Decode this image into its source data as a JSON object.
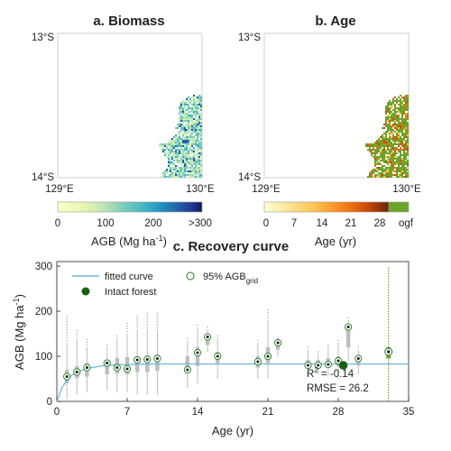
{
  "maps": [
    {
      "title": "a. Biomass",
      "lat_top": "13°S",
      "lat_bottom": "14°S",
      "lon_left": "129°E",
      "lon_right": "130°E",
      "colorbar_ticks": [
        "0",
        "100",
        "200",
        ">300"
      ],
      "colorbar_label": "AGB (Mg ha",
      "colorbar_label_sup": "-1",
      "colorbar_label_end": ")",
      "colors": [
        "#ffffcc",
        "#c7e9b4",
        "#7fcdbb",
        "#41b6c4",
        "#1d91c0",
        "#225ea8",
        "#253494",
        "#081d58"
      ]
    },
    {
      "title": "b. Age",
      "lat_top": "13°S",
      "lat_bottom": "14°S",
      "lon_left": "129°E",
      "lon_right": "130°E",
      "colorbar_ticks": [
        "0",
        "7",
        "14",
        "21",
        "28",
        "ogf"
      ],
      "colorbar_label": "Age (yr)",
      "colors": [
        "#ffffd4",
        "#fee391",
        "#fec44f",
        "#fe9929",
        "#ec7014",
        "#cc4c02",
        "#993404",
        "#662506"
      ],
      "ogf_color": "#6aa52a"
    }
  ],
  "chart_data": {
    "type": "scatter",
    "title": "c. Recovery curve",
    "xlabel": "Age (yr)",
    "ylabel": "AGB (Mg ha",
    "ylabel_sup": "-1",
    "ylabel_end": ")",
    "xlim": [
      0,
      35
    ],
    "ylim": [
      0,
      310
    ],
    "xticks": [
      0,
      7,
      14,
      21,
      28,
      35
    ],
    "yticks": [
      0,
      100,
      200,
      300
    ],
    "legend": {
      "fitted_curve": "fitted curve",
      "p95": "95% AGB",
      "p95_sub": "grid",
      "intact": "Intact forest"
    },
    "fitted_curve": {
      "asymptote": 83,
      "x": [
        0,
        0.5,
        1,
        1.5,
        2,
        3,
        4,
        5,
        6,
        8,
        10,
        14,
        21,
        28,
        35
      ],
      "y": [
        0,
        30,
        47,
        58,
        65,
        73,
        77,
        80,
        81,
        82.5,
        83,
        83,
        83,
        83,
        83
      ]
    },
    "boxplots": [
      {
        "age": 1,
        "q1": 40,
        "median": 58,
        "q3": 70,
        "whisker_low": 5,
        "whisker_high": 130,
        "outlier_max": 190
      },
      {
        "age": 2,
        "q1": 52,
        "median": 68,
        "q3": 78,
        "whisker_low": 15,
        "whisker_high": 140,
        "outlier_max": 160
      },
      {
        "age": 3,
        "q1": 55,
        "median": 72,
        "q3": 85,
        "whisker_low": 20,
        "whisker_high": 120,
        "outlier_max": 140
      },
      {
        "age": 5,
        "q1": 60,
        "median": 78,
        "q3": 92,
        "whisker_low": 25,
        "whisker_high": 120,
        "outlier_max": 125
      },
      {
        "age": 6,
        "q1": 62,
        "median": 80,
        "q3": 96,
        "whisker_low": 20,
        "whisker_high": 140,
        "outlier_max": 150
      },
      {
        "age": 7,
        "q1": 60,
        "median": 80,
        "q3": 98,
        "whisker_low": 20,
        "whisker_high": 150,
        "outlier_max": 175
      },
      {
        "age": 8,
        "q1": 65,
        "median": 85,
        "q3": 100,
        "whisker_low": 15,
        "whisker_high": 160,
        "outlier_max": 190
      },
      {
        "age": 9,
        "q1": 65,
        "median": 88,
        "q3": 102,
        "whisker_low": 15,
        "whisker_high": 160,
        "outlier_max": 200
      },
      {
        "age": 10,
        "q1": 68,
        "median": 88,
        "q3": 104,
        "whisker_low": 15,
        "whisker_high": 160,
        "outlier_max": 195
      },
      {
        "age": 13,
        "q1": 70,
        "median": 85,
        "q3": 100,
        "whisker_low": 30,
        "whisker_high": 135,
        "outlier_max": 140
      },
      {
        "age": 14,
        "q1": 78,
        "median": 98,
        "q3": 120,
        "whisker_low": 40,
        "whisker_high": 165,
        "outlier_max": 170
      },
      {
        "age": 15,
        "q1": 125,
        "median": 140,
        "q3": 150,
        "whisker_low": 110,
        "whisker_high": 160,
        "outlier_max": 165
      },
      {
        "age": 16,
        "q1": 85,
        "median": 98,
        "q3": 110,
        "whisker_low": 50,
        "whisker_high": 140,
        "outlier_max": 145
      },
      {
        "age": 20,
        "q1": 75,
        "median": 88,
        "q3": 100,
        "whisker_low": 50,
        "whisker_high": 130,
        "outlier_max": 135
      },
      {
        "age": 21,
        "q1": 85,
        "median": 100,
        "q3": 120,
        "whisker_low": 50,
        "whisker_high": 180,
        "outlier_max": 205
      },
      {
        "age": 22,
        "q1": 115,
        "median": 130,
        "q3": 138,
        "whisker_low": 100,
        "whisker_high": 145,
        "outlier_max": 145
      },
      {
        "age": 25,
        "q1": 75,
        "median": 85,
        "q3": 92,
        "whisker_low": 55,
        "whisker_high": 115,
        "outlier_max": 125
      },
      {
        "age": 26,
        "q1": 75,
        "median": 84,
        "q3": 92,
        "whisker_low": 60,
        "whisker_high": 105,
        "outlier_max": 110
      },
      {
        "age": 27,
        "q1": 78,
        "median": 86,
        "q3": 96,
        "whisker_low": 55,
        "whisker_high": 120,
        "outlier_max": 125
      },
      {
        "age": 28,
        "q1": 78,
        "median": 88,
        "q3": 100,
        "whisker_low": 50,
        "whisker_high": 130,
        "outlier_max": 135
      },
      {
        "age": 29,
        "q1": 120,
        "median": 145,
        "q3": 165,
        "whisker_low": 90,
        "whisker_high": 180,
        "outlier_max": 185
      },
      {
        "age": 30,
        "q1": 80,
        "median": 90,
        "q3": 100,
        "whisker_low": 60,
        "whisker_high": 115,
        "outlier_max": 120
      }
    ],
    "p95_points": [
      {
        "age": 1,
        "agb": 55
      },
      {
        "age": 2,
        "agb": 65
      },
      {
        "age": 3,
        "agb": 75
      },
      {
        "age": 5,
        "agb": 85
      },
      {
        "age": 6,
        "agb": 75
      },
      {
        "age": 7,
        "agb": 72
      },
      {
        "age": 8,
        "agb": 92
      },
      {
        "age": 9,
        "agb": 93
      },
      {
        "age": 10,
        "agb": 95
      },
      {
        "age": 13,
        "agb": 70
      },
      {
        "age": 14,
        "agb": 108
      },
      {
        "age": 15,
        "agb": 143
      },
      {
        "age": 16,
        "agb": 100
      },
      {
        "age": 20,
        "agb": 88
      },
      {
        "age": 21,
        "agb": 100
      },
      {
        "age": 22,
        "agb": 130
      },
      {
        "age": 25,
        "agb": 80
      },
      {
        "age": 26,
        "agb": 80
      },
      {
        "age": 27,
        "agb": 82
      },
      {
        "age": 28,
        "agb": 90
      },
      {
        "age": 29,
        "agb": 165
      },
      {
        "age": 30,
        "agb": 95
      }
    ],
    "intact_forest": {
      "age": 28.5,
      "agb": 80
    },
    "ogf_column": {
      "age": 33,
      "p95_agb": 110,
      "q1": 95,
      "q3": 120,
      "min": 0,
      "max": 298
    },
    "annotations": {
      "r2_label": "R",
      "r2_sup": "2",
      "r2_value": " = -0.14",
      "rmse": "RMSE = 26.2"
    },
    "colors": {
      "curve": "#6fb7d6",
      "box": "#bdbdbd",
      "ogf": "#6aa52a",
      "intact": "#1a5e1a",
      "marker_edge": "#1a7a1a"
    }
  }
}
